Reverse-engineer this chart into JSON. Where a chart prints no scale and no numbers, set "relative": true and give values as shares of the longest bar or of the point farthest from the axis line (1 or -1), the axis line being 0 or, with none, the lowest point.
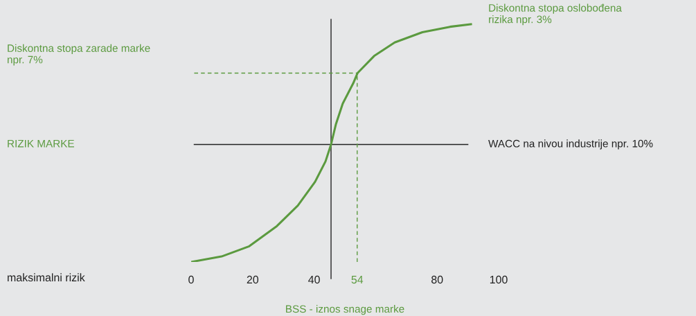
{
  "chart_data": {
    "type": "line",
    "relative": true,
    "xlabel": "BSS - iznos snage marke",
    "xlim": [
      0,
      100
    ],
    "xticks": [
      0,
      20,
      40,
      54,
      80,
      100
    ],
    "series": [
      {
        "color": "#5b9a3f",
        "x": [
          0,
          9.9,
          18.9,
          27.9,
          34.7,
          40.3,
          43.7,
          45.5,
          47.1,
          49.3,
          52.7,
          54.1,
          59.5,
          66.2,
          75.2,
          84.2,
          91.0
        ],
        "values": [
          0,
          0.023,
          0.066,
          0.151,
          0.237,
          0.337,
          0.423,
          0.494,
          0.58,
          0.666,
          0.751,
          0.794,
          0.866,
          0.923,
          0.966,
          0.989,
          1.0
        ]
      }
    ],
    "ref_lines": [
      {
        "axis": "x",
        "value": 45.5,
        "color": "#222222",
        "line_style": "solid"
      },
      {
        "axis": "y",
        "value": 0.494,
        "label": "WACC na nivou industrije npr. 10%",
        "color": "#222222",
        "line_style": "solid"
      },
      {
        "axis": "y",
        "value": 0.794,
        "label": "Diskontna stopa zarade marke\nnpr. 7%",
        "color": "#5b9a3f",
        "line_style": "dashed"
      },
      {
        "axis": "x",
        "value": 54,
        "color": "#5b9a3f",
        "line_style": "dashed"
      }
    ],
    "annotations": [
      "RIZIK MARKE",
      "maksimalni rizik",
      {
        "text": "Diskontna stopa oslobođena\nrizika npr. 3%",
        "x": 91.0,
        "y": 1.0
      }
    ],
    "grid": false,
    "legend": false,
    "marker": "none",
    "line_style": "solid"
  }
}
